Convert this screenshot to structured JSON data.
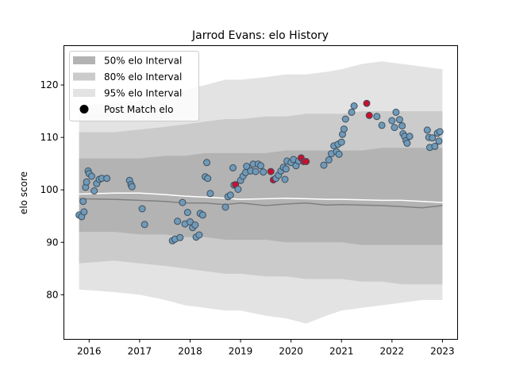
{
  "chart_data": {
    "type": "scatter",
    "title": "Jarrod Evans: elo History",
    "xlabel": "",
    "ylabel": "elo score",
    "xlim": [
      2015.5,
      2023.3
    ],
    "ylim": [
      71.5,
      127.5
    ],
    "x_ticks": [
      2016,
      2017,
      2018,
      2019,
      2020,
      2021,
      2022,
      2023
    ],
    "y_ticks": [
      80,
      90,
      100,
      110,
      120
    ],
    "grid": false,
    "legend": {
      "placement": "upper-left",
      "entries": [
        "50% elo Interval",
        "80% elo Interval",
        "95% elo Interval",
        "Post Match elo"
      ]
    },
    "colors": {
      "band95": "#e3e3e3",
      "band80": "#cbcbcb",
      "band50": "#b3b3b3",
      "median_line": "#808080",
      "mean_line": "#ffffff",
      "point_fill": "#6f9ab8",
      "point_edge": "#3f4f5f",
      "highlight_fill": "#c8102e"
    },
    "band_x": [
      2015.8,
      2016.5,
      2017.0,
      2017.5,
      2017.9,
      2018.3,
      2018.7,
      2019.0,
      2019.5,
      2019.9,
      2020.3,
      2020.7,
      2021.0,
      2021.4,
      2021.8,
      2022.2,
      2022.6,
      2023.0
    ],
    "band95_upper": [
      116,
      116.5,
      117,
      118,
      119,
      120,
      121,
      121,
      121.5,
      122,
      122,
      122.5,
      123,
      124,
      124.5,
      124,
      123.5,
      123
    ],
    "band95_lower": [
      81,
      80.5,
      80,
      79,
      78,
      77.5,
      77,
      77,
      76,
      75.5,
      74.5,
      76,
      77,
      77.5,
      78,
      78.5,
      79,
      79
    ],
    "band80_upper": [
      111,
      111,
      111.5,
      112,
      112.5,
      113,
      113.5,
      113.5,
      114,
      114,
      114.5,
      114.5,
      114.5,
      115,
      115,
      115,
      115,
      115
    ],
    "band80_lower": [
      86,
      86.5,
      86,
      85.5,
      85,
      84.5,
      84,
      84,
      83.5,
      83.5,
      83,
      83,
      83,
      82.5,
      82.5,
      82,
      82,
      82
    ],
    "band50_upper": [
      106,
      106,
      106,
      106.5,
      106.5,
      107,
      107,
      107,
      107,
      107.5,
      107.5,
      107.5,
      107.5,
      107.5,
      108,
      108,
      108,
      108
    ],
    "band50_lower": [
      92,
      92,
      91.5,
      91.5,
      91,
      91,
      90.5,
      90.5,
      90.5,
      90,
      90,
      90,
      90,
      89.5,
      89.5,
      89.5,
      89.5,
      89.5
    ],
    "median_line": [
      98.3,
      98.2,
      98.0,
      97.8,
      97.5,
      97.5,
      97.2,
      97.5,
      97.0,
      97.3,
      97.5,
      97.1,
      97.2,
      97.1,
      97.0,
      96.8,
      96.6,
      97.0
    ],
    "mean_line": [
      99.2,
      99.4,
      99.4,
      99.1,
      98.8,
      98.6,
      98.4,
      98.2,
      98.3,
      98.4,
      98.3,
      98.2,
      98.2,
      98.1,
      98.0,
      98.0,
      97.8,
      97.6
    ],
    "points": [
      {
        "x": 2015.8,
        "y": 95.2
      },
      {
        "x": 2015.85,
        "y": 94.9
      },
      {
        "x": 2015.88,
        "y": 97.8
      },
      {
        "x": 2015.9,
        "y": 95.8
      },
      {
        "x": 2015.93,
        "y": 100.5
      },
      {
        "x": 2015.95,
        "y": 101.5
      },
      {
        "x": 2015.98,
        "y": 103.6
      },
      {
        "x": 2016.0,
        "y": 103.1
      },
      {
        "x": 2016.05,
        "y": 102.6
      },
      {
        "x": 2016.1,
        "y": 99.8
      },
      {
        "x": 2016.15,
        "y": 101.2
      },
      {
        "x": 2016.2,
        "y": 102.0
      },
      {
        "x": 2016.25,
        "y": 102.2
      },
      {
        "x": 2016.35,
        "y": 102.2
      },
      {
        "x": 2016.8,
        "y": 101.8
      },
      {
        "x": 2016.83,
        "y": 101.0
      },
      {
        "x": 2016.85,
        "y": 100.6
      },
      {
        "x": 2017.05,
        "y": 96.4
      },
      {
        "x": 2017.1,
        "y": 93.4
      },
      {
        "x": 2017.65,
        "y": 90.3
      },
      {
        "x": 2017.7,
        "y": 90.6
      },
      {
        "x": 2017.75,
        "y": 94.0
      },
      {
        "x": 2017.8,
        "y": 90.9
      },
      {
        "x": 2017.85,
        "y": 97.6
      },
      {
        "x": 2017.9,
        "y": 93.5
      },
      {
        "x": 2017.95,
        "y": 95.7
      },
      {
        "x": 2018.0,
        "y": 93.9
      },
      {
        "x": 2018.05,
        "y": 92.8
      },
      {
        "x": 2018.1,
        "y": 93.3
      },
      {
        "x": 2018.12,
        "y": 91.0
      },
      {
        "x": 2018.18,
        "y": 91.4
      },
      {
        "x": 2018.2,
        "y": 95.5
      },
      {
        "x": 2018.25,
        "y": 95.2
      },
      {
        "x": 2018.3,
        "y": 102.5
      },
      {
        "x": 2018.33,
        "y": 105.2
      },
      {
        "x": 2018.35,
        "y": 102.2
      },
      {
        "x": 2018.4,
        "y": 99.3
      },
      {
        "x": 2018.7,
        "y": 96.7
      },
      {
        "x": 2018.75,
        "y": 98.7
      },
      {
        "x": 2018.8,
        "y": 99.0
      },
      {
        "x": 2018.85,
        "y": 104.2
      },
      {
        "x": 2018.87,
        "y": 100.9
      },
      {
        "x": 2018.9,
        "y": 101.0,
        "highlight": true
      },
      {
        "x": 2018.95,
        "y": 100.1
      },
      {
        "x": 2019.0,
        "y": 101.8
      },
      {
        "x": 2019.05,
        "y": 102.6
      },
      {
        "x": 2019.1,
        "y": 103.3
      },
      {
        "x": 2019.12,
        "y": 104.5
      },
      {
        "x": 2019.2,
        "y": 103.6
      },
      {
        "x": 2019.25,
        "y": 104.9
      },
      {
        "x": 2019.3,
        "y": 103.5
      },
      {
        "x": 2019.35,
        "y": 104.9
      },
      {
        "x": 2019.4,
        "y": 104.6
      },
      {
        "x": 2019.45,
        "y": 103.4
      },
      {
        "x": 2019.6,
        "y": 103.5,
        "highlight": true
      },
      {
        "x": 2019.65,
        "y": 101.9,
        "highlight": true
      },
      {
        "x": 2019.7,
        "y": 102.2
      },
      {
        "x": 2019.75,
        "y": 102.8
      },
      {
        "x": 2019.8,
        "y": 103.6
      },
      {
        "x": 2019.85,
        "y": 104.3
      },
      {
        "x": 2019.88,
        "y": 102.0
      },
      {
        "x": 2019.9,
        "y": 104.0
      },
      {
        "x": 2019.92,
        "y": 105.5
      },
      {
        "x": 2020.0,
        "y": 105.2
      },
      {
        "x": 2020.05,
        "y": 105.8
      },
      {
        "x": 2020.1,
        "y": 104.6
      },
      {
        "x": 2020.15,
        "y": 105.5
      },
      {
        "x": 2020.2,
        "y": 106.1,
        "highlight": true
      },
      {
        "x": 2020.25,
        "y": 105.4,
        "highlight": true
      },
      {
        "x": 2020.3,
        "y": 105.4,
        "highlight": true
      },
      {
        "x": 2020.65,
        "y": 104.7
      },
      {
        "x": 2020.75,
        "y": 105.7
      },
      {
        "x": 2020.8,
        "y": 106.9
      },
      {
        "x": 2020.85,
        "y": 108.4
      },
      {
        "x": 2020.9,
        "y": 107.3
      },
      {
        "x": 2020.93,
        "y": 108.7
      },
      {
        "x": 2020.95,
        "y": 106.8
      },
      {
        "x": 2021.0,
        "y": 109.1
      },
      {
        "x": 2021.02,
        "y": 110.6
      },
      {
        "x": 2021.05,
        "y": 111.6
      },
      {
        "x": 2021.08,
        "y": 113.5
      },
      {
        "x": 2021.2,
        "y": 114.8
      },
      {
        "x": 2021.25,
        "y": 116.0
      },
      {
        "x": 2021.5,
        "y": 116.5,
        "highlight": true
      },
      {
        "x": 2021.55,
        "y": 114.2,
        "highlight": true
      },
      {
        "x": 2021.7,
        "y": 114.0
      },
      {
        "x": 2021.8,
        "y": 112.3
      },
      {
        "x": 2022.0,
        "y": 113.2
      },
      {
        "x": 2022.05,
        "y": 111.9
      },
      {
        "x": 2022.08,
        "y": 114.8
      },
      {
        "x": 2022.15,
        "y": 113.4
      },
      {
        "x": 2022.2,
        "y": 112.2
      },
      {
        "x": 2022.22,
        "y": 110.7
      },
      {
        "x": 2022.25,
        "y": 110.2
      },
      {
        "x": 2022.28,
        "y": 109.4
      },
      {
        "x": 2022.3,
        "y": 108.9
      },
      {
        "x": 2022.35,
        "y": 110.2
      },
      {
        "x": 2022.7,
        "y": 111.4
      },
      {
        "x": 2022.73,
        "y": 110.0
      },
      {
        "x": 2022.75,
        "y": 108.1
      },
      {
        "x": 2022.8,
        "y": 109.9
      },
      {
        "x": 2022.85,
        "y": 108.3
      },
      {
        "x": 2022.9,
        "y": 110.8
      },
      {
        "x": 2022.93,
        "y": 109.3
      },
      {
        "x": 2022.95,
        "y": 111.1
      }
    ]
  }
}
